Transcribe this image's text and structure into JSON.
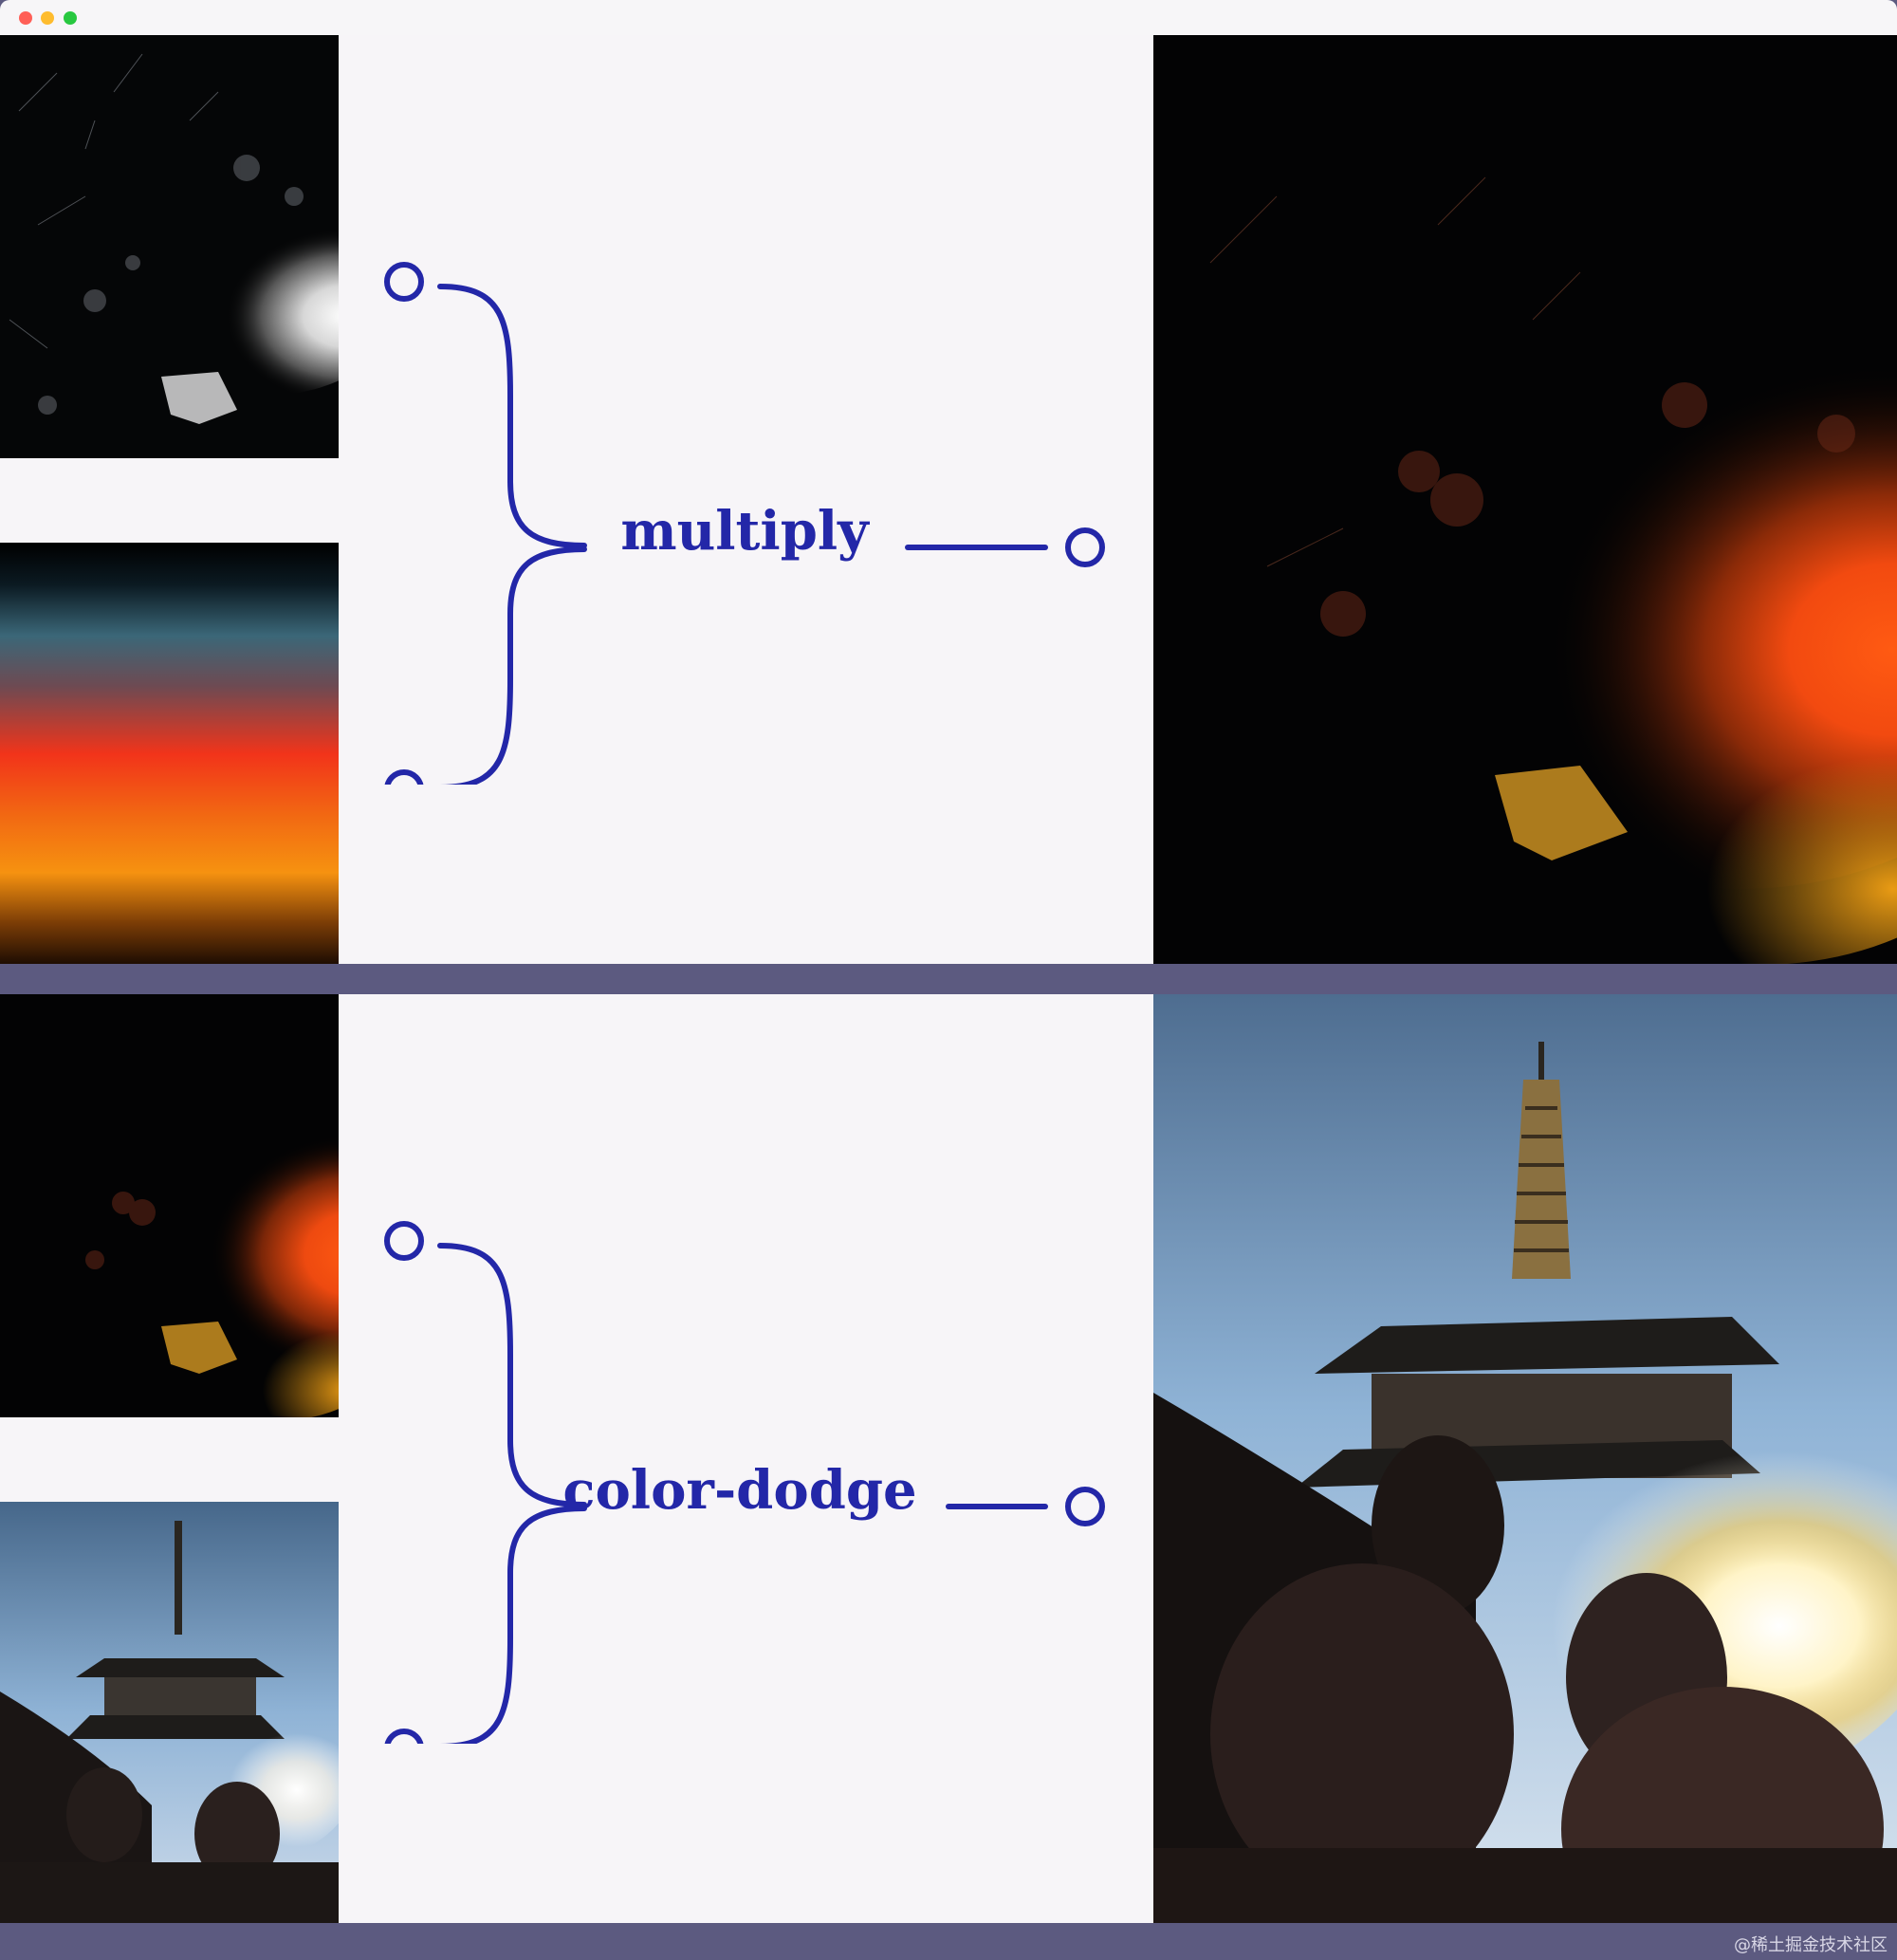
{
  "window": {
    "controls": [
      "close",
      "minimize",
      "zoom"
    ]
  },
  "diagrams": [
    {
      "mode_label": "multiply",
      "inputs": [
        "dust-texture-grayscale",
        "sunset-gradient"
      ],
      "output": "orange-dust-texture"
    },
    {
      "mode_label": "color-dodge",
      "inputs": [
        "orange-dust-texture",
        "pagoda-photo"
      ],
      "output": "pagoda-with-glow"
    }
  ],
  "colors": {
    "accent": "#2327a8",
    "panel_bg": "#f7f5f8",
    "divider": "#5c5a80"
  },
  "watermark": "@稀土掘金技术社区"
}
